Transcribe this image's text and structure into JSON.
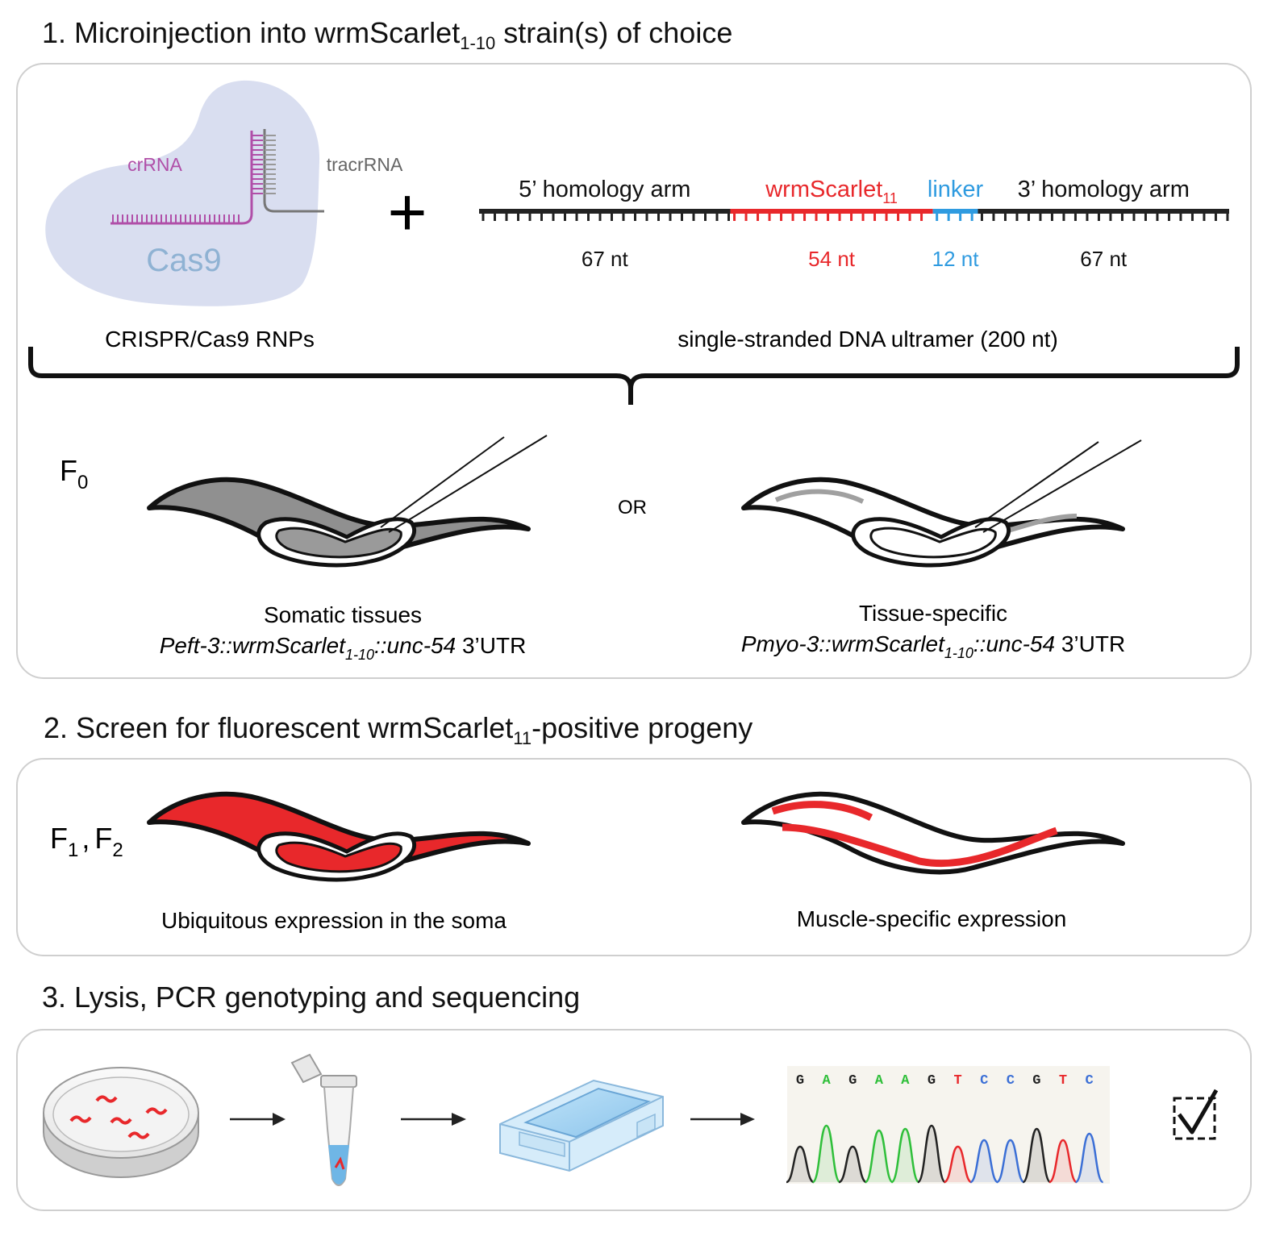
{
  "sections": [
    {
      "number": "1.",
      "title_pre": "Microinjection into wrmScarlet",
      "title_sub": "1-10",
      "title_post": " strain(s) of choice"
    },
    {
      "number": "2.",
      "title_pre": "Screen for fluorescent wrmScarlet",
      "title_sub": "11",
      "title_post": "-positive progeny"
    },
    {
      "number": "3.",
      "title": "Lysis, PCR genotyping and sequencing"
    }
  ],
  "rnp": {
    "protein": "Cas9",
    "guide": "crRNA",
    "tracr": "tracrRNA",
    "caption": "CRISPR/Cas9 RNPs",
    "plus": "+"
  },
  "ultramer": {
    "caption": "single-stranded DNA ultramer (200 nt)",
    "segments": [
      {
        "label": "5’ homology arm",
        "sub": "",
        "length": "67 nt",
        "nt": 67,
        "color": "#222222"
      },
      {
        "label": "wrmScarlet",
        "sub": "11",
        "length": "54 nt",
        "nt": 54,
        "color": "#e8282b"
      },
      {
        "label": "linker",
        "sub": "",
        "length": "12 nt",
        "nt": 12,
        "color": "#2f9be0"
      },
      {
        "label": "3’ homology arm",
        "sub": "",
        "length": "67 nt",
        "nt": 67,
        "color": "#222222"
      }
    ]
  },
  "f0": {
    "generation": "F",
    "generation_sub": "0",
    "or_label": "OR",
    "left": {
      "line1": "Somatic tissues",
      "promoter": "Peft-3::wrmScarlet",
      "sub": "1-10",
      "tail": "::unc-54",
      "utr": " 3’UTR"
    },
    "right": {
      "line1": "Tissue-specific",
      "promoter": "Pmyo-3::wrmScarlet",
      "sub": "1-10",
      "tail": "::unc-54",
      "utr": " 3’UTR"
    }
  },
  "f1": {
    "gen1": "F",
    "gen1_sub": "1",
    "sep": ",",
    "gen2": "F",
    "gen2_sub": "2",
    "left_caption": "Ubiquitous expression in the soma",
    "right_caption": "Muscle-specific expression"
  },
  "sequencing": {
    "bases": [
      "G",
      "A",
      "G",
      "A",
      "A",
      "G",
      "T",
      "C",
      "C",
      "G",
      "T",
      "C"
    ],
    "base_colors": {
      "G": "#222222",
      "A": "#2fbf3a",
      "T": "#e8282b",
      "C": "#3b6fd6"
    }
  },
  "colors": {
    "red": "#e8282b",
    "blue": "#2f9be0",
    "purple": "#b04fa8",
    "cas9_fill": "#d9def0",
    "cas9_text": "#8fb2d3"
  }
}
